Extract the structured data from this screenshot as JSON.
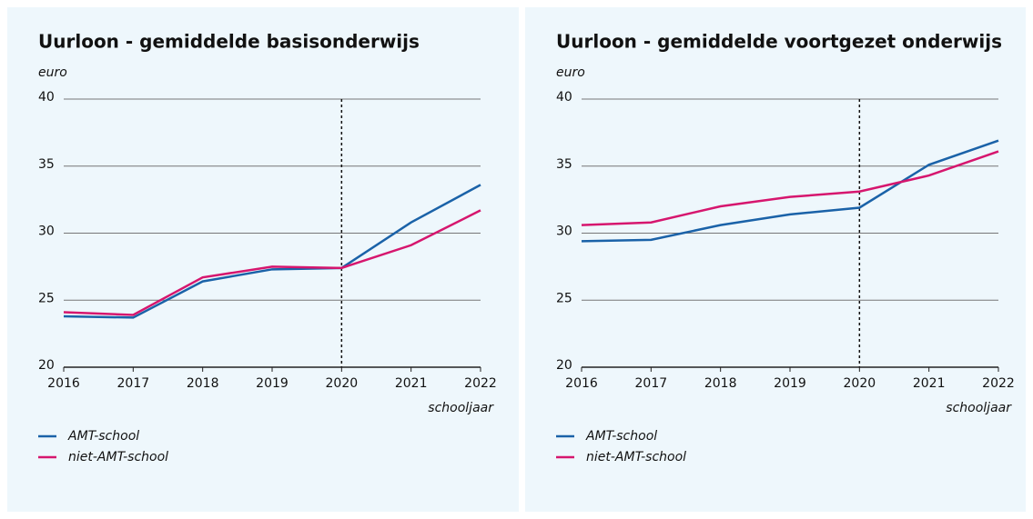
{
  "chart_data": [
    {
      "type": "line",
      "title": "Uurloon - gemiddelde basisonderwijs",
      "y_unit_label": "euro",
      "x_label": "schooljaar",
      "x": [
        2016,
        2017,
        2018,
        2019,
        2020,
        2021,
        2022
      ],
      "xlim": [
        2016,
        2022
      ],
      "xticks": [
        2016,
        2017,
        2018,
        2019,
        2020,
        2021,
        2022
      ],
      "ylim": [
        20,
        40
      ],
      "yticks": [
        20,
        25,
        30,
        35,
        40
      ],
      "grid": true,
      "vline": 2020,
      "series": [
        {
          "name": "AMT-school",
          "color": "#1a62a8",
          "values": [
            23.8,
            23.7,
            26.4,
            27.3,
            27.4,
            30.8,
            33.6
          ]
        },
        {
          "name": "niet-AMT-school",
          "color": "#d6166e",
          "values": [
            24.1,
            23.9,
            26.7,
            27.5,
            27.4,
            29.1,
            31.7
          ]
        }
      ]
    },
    {
      "type": "line",
      "title": "Uurloon - gemiddelde voortgezet onderwijs",
      "y_unit_label": "euro",
      "x_label": "schooljaar",
      "x": [
        2016,
        2017,
        2018,
        2019,
        2020,
        2021,
        2022
      ],
      "xlim": [
        2016,
        2022
      ],
      "xticks": [
        2016,
        2017,
        2018,
        2019,
        2020,
        2021,
        2022
      ],
      "ylim": [
        20,
        40
      ],
      "yticks": [
        20,
        25,
        30,
        35,
        40
      ],
      "grid": true,
      "vline": 2020,
      "series": [
        {
          "name": "AMT-school",
          "color": "#1a62a8",
          "values": [
            29.4,
            29.5,
            30.6,
            31.4,
            31.9,
            35.1,
            36.9
          ]
        },
        {
          "name": "niet-AMT-school",
          "color": "#d6166e",
          "values": [
            30.6,
            30.8,
            32.0,
            32.7,
            33.1,
            34.3,
            36.1
          ]
        }
      ]
    }
  ]
}
